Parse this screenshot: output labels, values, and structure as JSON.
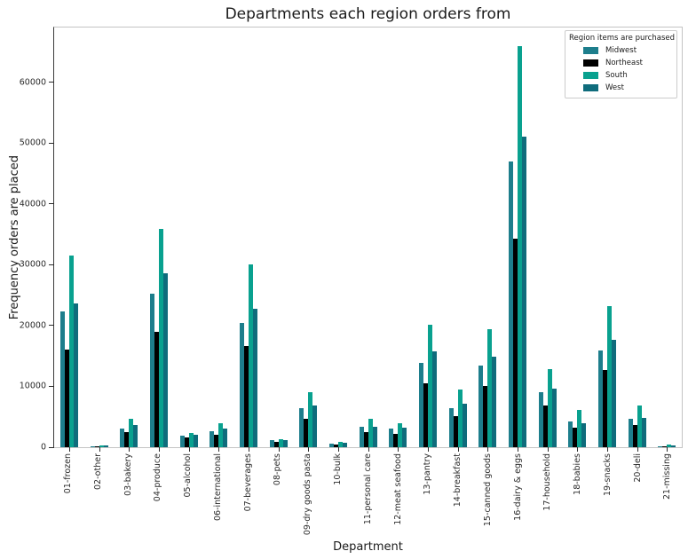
{
  "title": "Departments each region orders from",
  "legend": {
    "title": "Region items are purchased"
  },
  "chart_data": {
    "type": "bar",
    "title": "Departments each region orders from",
    "xlabel": "Department",
    "ylabel": "Frequency orders are placed",
    "categories": [
      "01-frozen",
      "02-other",
      "03-bakery",
      "04-produce",
      "05-alcohol",
      "06-international",
      "07-beverages",
      "08-pets",
      "09-dry goods pasta",
      "10-bulk",
      "11-personal care",
      "12-meat seafood",
      "13-pantry",
      "14-breakfast",
      "15-canned goods",
      "16-dairy & eggs",
      "17-household",
      "18-babies",
      "19-snacks",
      "20-deli",
      "21-missing"
    ],
    "series": [
      {
        "name": "Midwest",
        "color": "#1d7e8c",
        "values": [
          22300,
          200,
          3000,
          25300,
          1900,
          2600,
          20400,
          1150,
          6400,
          600,
          3400,
          3050,
          13800,
          6400,
          13400,
          47000,
          9000,
          4200,
          15850,
          4700,
          200
        ]
      },
      {
        "name": "Northeast",
        "color": "#000000",
        "values": [
          16100,
          100,
          2500,
          19000,
          1600,
          2050,
          16700,
          870,
          4700,
          440,
          2470,
          2200,
          10500,
          5100,
          10000,
          34300,
          6900,
          3250,
          12700,
          3650,
          150
        ]
      },
      {
        "name": "South",
        "color": "#09a18f",
        "values": [
          31500,
          300,
          4700,
          35900,
          2300,
          3900,
          30050,
          1350,
          9000,
          870,
          4650,
          3900,
          20100,
          9450,
          19450,
          66000,
          12900,
          6100,
          23250,
          6850,
          450
        ]
      },
      {
        "name": "West",
        "color": "#0f6c7c",
        "values": [
          23700,
          250,
          3600,
          28600,
          2050,
          3050,
          22800,
          1150,
          6900,
          720,
          3300,
          3250,
          15750,
          7100,
          14850,
          51100,
          9700,
          3980,
          17700,
          4850,
          300
        ]
      }
    ],
    "ylim": [
      0,
      69000
    ],
    "yticks": [
      0,
      10000,
      20000,
      30000,
      40000,
      50000,
      60000
    ],
    "grid": false,
    "legend_title": "Region items are purchased",
    "legend_position": "upper right"
  }
}
